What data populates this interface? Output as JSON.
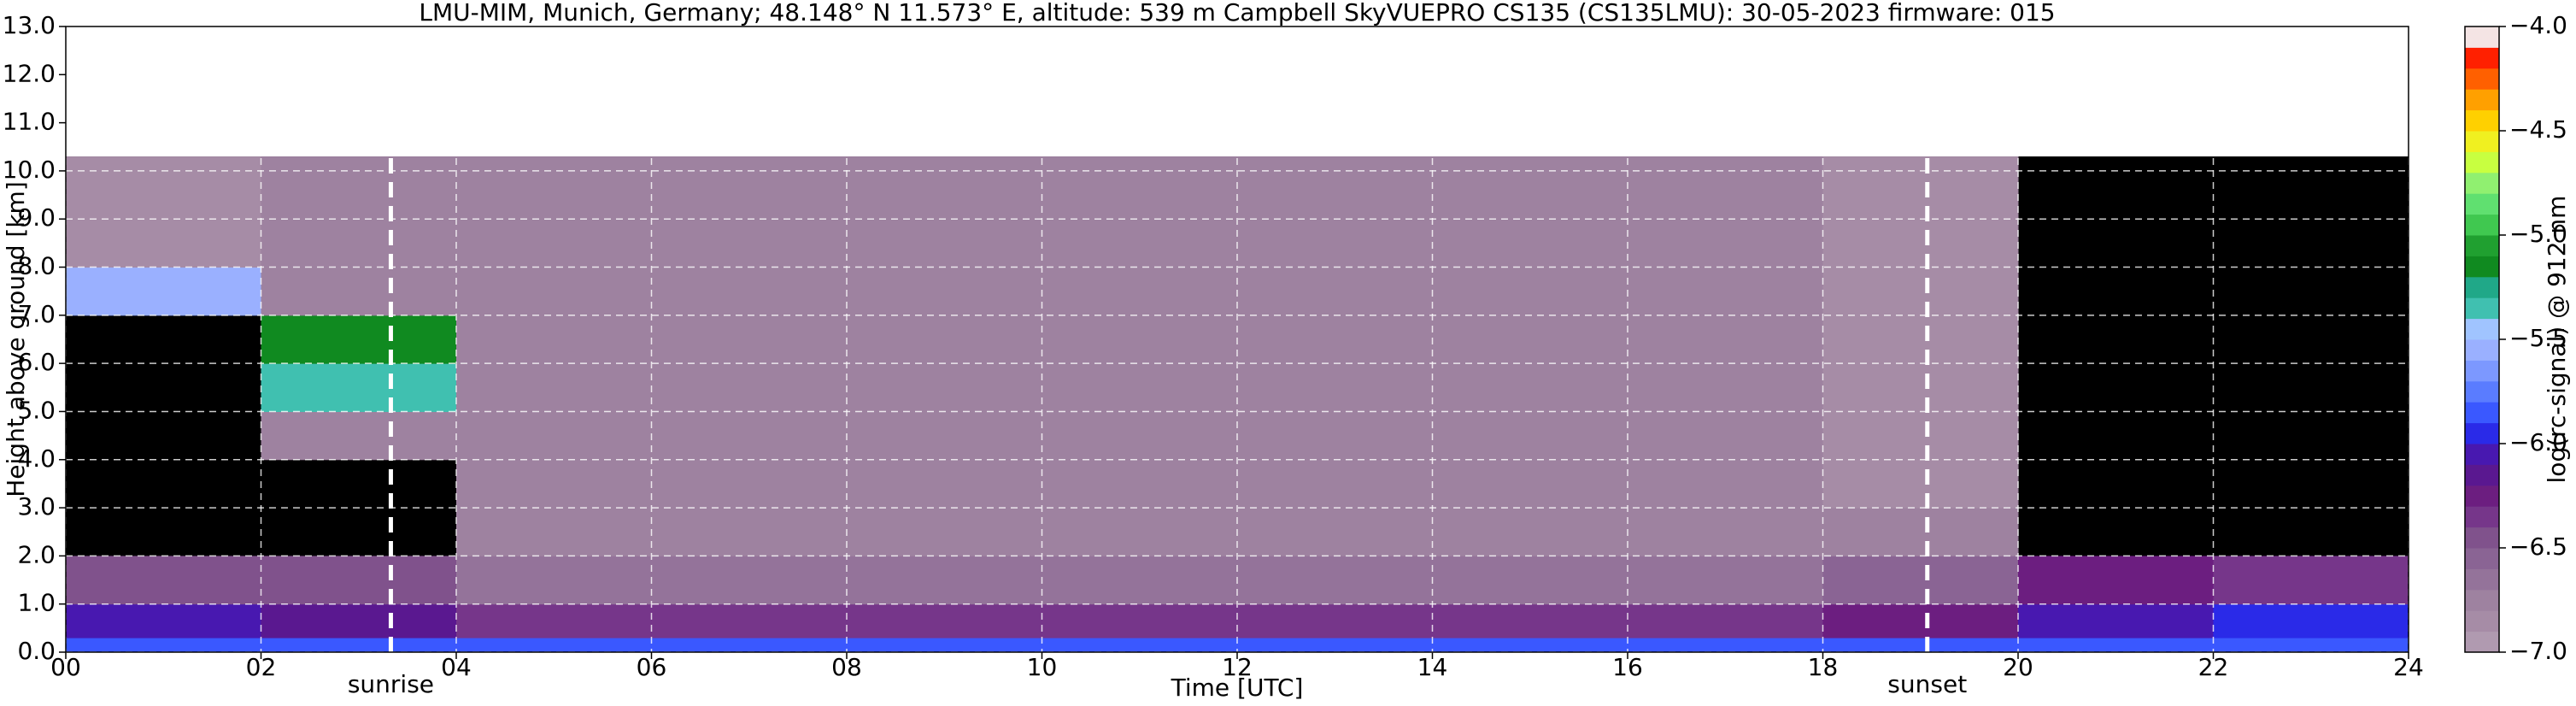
{
  "chart_data": {
    "type": "heatmap",
    "title": "LMU-MIM, Munich, Germany; 48.148° N 11.573° E, altitude: 539 m    Campbell SkyVUEPRO CS135 (CS135LMU): 30-05-2023    firmware: 015",
    "x_label": "Time [UTC]",
    "y_label": "Height above ground [km]",
    "colorbar_label": "log(rc-signal) @ 912 nm",
    "xlim": [
      0,
      24
    ],
    "ylim": [
      0,
      13
    ],
    "xticks": [
      {
        "value": 0,
        "label": "00"
      },
      {
        "value": 2,
        "label": "02"
      },
      {
        "value": 4,
        "label": "04"
      },
      {
        "value": 6,
        "label": "06"
      },
      {
        "value": 8,
        "label": "08"
      },
      {
        "value": 10,
        "label": "10"
      },
      {
        "value": 12,
        "label": "12"
      },
      {
        "value": 14,
        "label": "14"
      },
      {
        "value": 16,
        "label": "16"
      },
      {
        "value": 18,
        "label": "18"
      },
      {
        "value": 20,
        "label": "20"
      },
      {
        "value": 22,
        "label": "22"
      },
      {
        "value": 24,
        "label": "24"
      }
    ],
    "yticks": [
      {
        "value": 0,
        "label": "0.0"
      },
      {
        "value": 1,
        "label": "1.0"
      },
      {
        "value": 2,
        "label": "2.0"
      },
      {
        "value": 3,
        "label": "3.0"
      },
      {
        "value": 4,
        "label": "4.0"
      },
      {
        "value": 5,
        "label": "5.0"
      },
      {
        "value": 6,
        "label": "6.0"
      },
      {
        "value": 7,
        "label": "7.0"
      },
      {
        "value": 8,
        "label": "8.0"
      },
      {
        "value": 9,
        "label": "9.0"
      },
      {
        "value": 10,
        "label": "10.0"
      },
      {
        "value": 11,
        "label": "11.0"
      },
      {
        "value": 12,
        "label": "12.0"
      },
      {
        "value": 13,
        "label": "13.0"
      }
    ],
    "clim": [
      -7,
      -4
    ],
    "cticks": [
      {
        "value": -4,
        "label": "−4.0"
      },
      {
        "value": -4.5,
        "label": "−4.5"
      },
      {
        "value": -5,
        "label": "−5.0"
      },
      {
        "value": -5.5,
        "label": "−5.5"
      },
      {
        "value": -6,
        "label": "−6.0"
      },
      {
        "value": -6.5,
        "label": "−6.5"
      },
      {
        "value": -7,
        "label": "−7.0"
      }
    ],
    "colors": [
      "#b09ab0",
      "#a68ca6",
      "#9e82a0",
      "#94739a",
      "#8a6494",
      "#80528c",
      "#76368a",
      "#6c1e80",
      "#5a1890",
      "#4818b0",
      "#2a2ae8",
      "#3a58ff",
      "#5a7cff",
      "#7c98ff",
      "#9ab0ff",
      "#a0c4ff",
      "#40c0b0",
      "#20a888",
      "#108a20",
      "#20a030",
      "#40c850",
      "#60e070",
      "#90f070",
      "#c8ff40",
      "#f0f020",
      "#ffd000",
      "#ffa000",
      "#ff6000",
      "#ff2000",
      "#f4e4e4"
    ],
    "missing_color": "#000000",
    "grid": true,
    "x_bins": [
      0,
      2,
      4,
      6,
      8,
      10,
      12,
      14,
      16,
      18,
      20,
      22,
      24
    ],
    "y_bins": [
      0,
      0.3,
      1,
      2,
      3,
      4,
      5,
      6,
      7,
      8,
      9,
      10.3
    ],
    "z": [
      [
        -5.9,
        -5.9,
        -5.9,
        -5.9,
        -5.9,
        -5.9,
        -5.9,
        -5.9,
        -5.9,
        -5.9,
        -5.9,
        -5.9
      ],
      [
        -6.1,
        -6.2,
        -6.4,
        -6.4,
        -6.4,
        -6.4,
        -6.4,
        -6.4,
        -6.4,
        -6.3,
        -6.1,
        -6.0
      ],
      [
        -6.5,
        -6.5,
        -6.7,
        -6.7,
        -6.7,
        -6.7,
        -6.7,
        -6.7,
        -6.7,
        -6.6,
        -6.3,
        -6.4
      ],
      [
        null,
        null,
        -6.8,
        -6.8,
        -6.8,
        -6.8,
        -6.8,
        -6.8,
        -6.8,
        -6.8,
        null,
        null
      ],
      [
        null,
        null,
        -6.8,
        -6.8,
        -6.8,
        -6.8,
        -6.8,
        -6.8,
        -6.8,
        -6.9,
        null,
        null
      ],
      [
        null,
        -6.8,
        -6.8,
        -6.8,
        -6.8,
        -6.8,
        -6.8,
        -6.8,
        -6.8,
        -6.9,
        null,
        null
      ],
      [
        null,
        -5.4,
        -6.8,
        -6.8,
        -6.8,
        -6.8,
        -6.8,
        -6.8,
        -6.8,
        -6.9,
        null,
        null
      ],
      [
        null,
        -5.2,
        -6.8,
        -6.8,
        -6.8,
        -6.8,
        -6.8,
        -6.8,
        -6.8,
        -6.9,
        null,
        null
      ],
      [
        -5.6,
        -6.8,
        -6.8,
        -6.8,
        -6.8,
        -6.8,
        -6.8,
        -6.8,
        -6.8,
        -6.9,
        null,
        null
      ],
      [
        -6.9,
        -6.8,
        -6.8,
        -6.8,
        -6.8,
        -6.8,
        -6.8,
        -6.8,
        -6.8,
        -6.9,
        null,
        null
      ],
      [
        -6.9,
        -6.8,
        -6.8,
        -6.8,
        -6.8,
        -6.8,
        -6.8,
        -6.8,
        -6.8,
        -6.9,
        null,
        null
      ]
    ],
    "annotations": [
      {
        "text": "sunrise",
        "x": 3.33
      },
      {
        "text": "sunset",
        "x": 19.07
      }
    ]
  }
}
